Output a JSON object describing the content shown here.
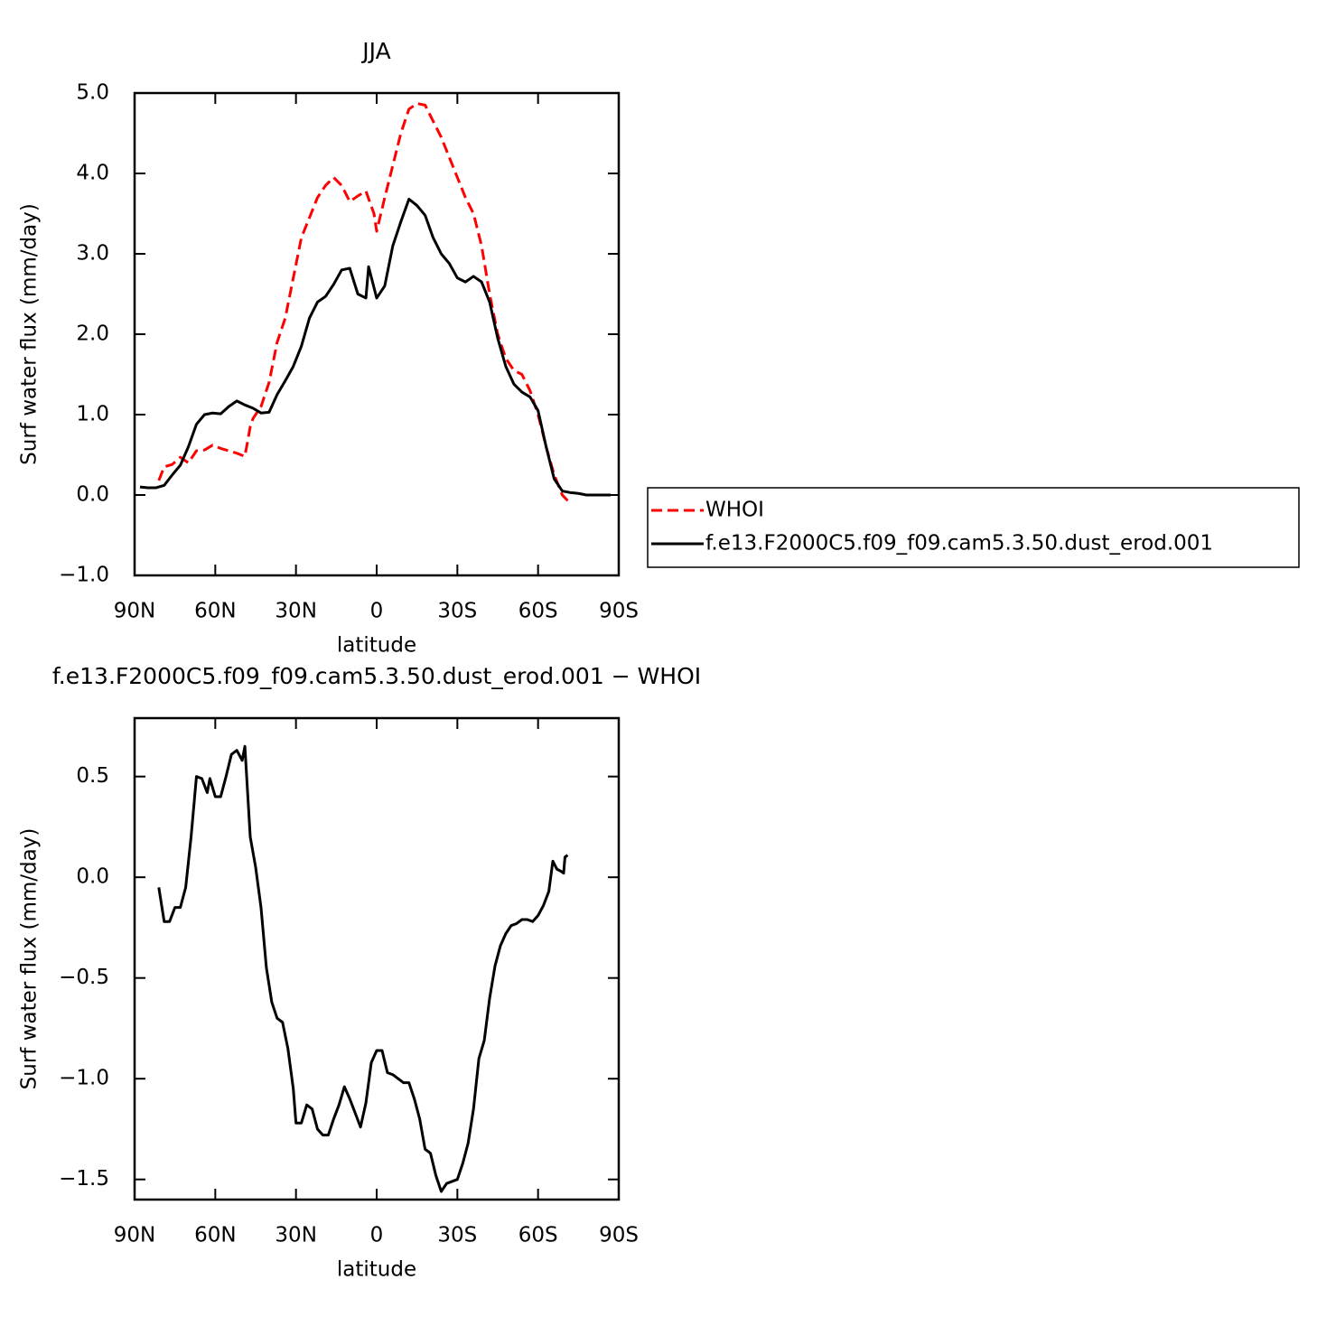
{
  "chart_data": [
    {
      "type": "line",
      "title": "JJA",
      "x_label": "latitude",
      "y_label": "Surf water flux (mm/day)",
      "xlim": [
        90,
        -90
      ],
      "xticks": [
        {
          "value": 90,
          "label": "90N"
        },
        {
          "value": 60,
          "label": "60N"
        },
        {
          "value": 30,
          "label": "30N"
        },
        0,
        {
          "value": -30,
          "label": "30S"
        },
        {
          "value": -60,
          "label": "60S"
        },
        {
          "value": -90,
          "label": "90S"
        }
      ],
      "ylim": [
        -1,
        5
      ],
      "yticks": [
        {
          "value": -1,
          "label": "−1.0"
        },
        {
          "value": 0,
          "label": "0.0"
        },
        {
          "value": 1,
          "label": "1.0"
        },
        {
          "value": 2,
          "label": "2.0"
        },
        {
          "value": 3,
          "label": "3.0"
        },
        {
          "value": 4,
          "label": "4.0"
        },
        {
          "value": 5,
          "label": "5.0"
        }
      ],
      "legend": "right",
      "series": [
        {
          "name": "WHOI",
          "color": "#ff0000",
          "dash": true,
          "x": [
            81,
            79,
            76,
            73,
            70,
            67,
            64,
            61,
            58,
            55,
            52,
            49,
            47,
            46,
            43,
            40,
            37,
            34,
            31,
            28,
            25,
            22,
            19,
            16,
            13,
            10,
            7,
            4,
            1,
            0,
            -3,
            -6,
            -9,
            -12,
            -15,
            -18,
            -21,
            -24,
            -27,
            -30,
            -33,
            -36,
            -39,
            -42,
            -45,
            -48,
            -51,
            -54,
            -57,
            -60,
            -63,
            -66,
            -69,
            -71
          ],
          "values": [
            0.18,
            0.35,
            0.38,
            0.47,
            0.4,
            0.55,
            0.56,
            0.62,
            0.58,
            0.55,
            0.52,
            0.48,
            0.85,
            0.95,
            1.1,
            1.4,
            1.9,
            2.2,
            2.7,
            3.2,
            3.45,
            3.7,
            3.85,
            3.95,
            3.85,
            3.65,
            3.72,
            3.78,
            3.5,
            3.28,
            3.7,
            4.1,
            4.5,
            4.8,
            4.87,
            4.85,
            4.65,
            4.45,
            4.2,
            3.95,
            3.7,
            3.5,
            3.1,
            2.5,
            2.0,
            1.7,
            1.55,
            1.5,
            1.3,
            1.0,
            0.6,
            0.25,
            0.0,
            -0.07
          ]
        },
        {
          "name": "f.e13.F2000C5.f09_f09.cam5.3.50.dust_erod.001",
          "color": "#000000",
          "dash": false,
          "x": [
            88,
            85,
            82,
            79,
            76,
            73,
            70,
            67,
            64,
            61,
            58,
            55,
            52,
            49,
            46,
            43,
            40,
            37,
            34,
            31,
            28,
            25,
            22,
            19,
            16,
            13,
            10,
            7,
            4,
            3,
            0,
            -3,
            -6,
            -9,
            -12,
            -15,
            -18,
            -21,
            -24,
            -27,
            -30,
            -33,
            -36,
            -39,
            -42,
            -45,
            -48,
            -51,
            -54,
            -57,
            -60,
            -63,
            -66,
            -69,
            -72,
            -75,
            -78,
            -81,
            -84,
            -87
          ],
          "values": [
            0.1,
            0.09,
            0.09,
            0.12,
            0.25,
            0.37,
            0.6,
            0.88,
            1.0,
            1.02,
            1.01,
            1.1,
            1.17,
            1.12,
            1.08,
            1.02,
            1.03,
            1.25,
            1.42,
            1.6,
            1.85,
            2.2,
            2.4,
            2.47,
            2.62,
            2.8,
            2.82,
            2.5,
            2.45,
            2.84,
            2.45,
            2.6,
            3.1,
            3.4,
            3.68,
            3.6,
            3.48,
            3.2,
            3.0,
            2.88,
            2.7,
            2.65,
            2.72,
            2.65,
            2.4,
            1.95,
            1.6,
            1.38,
            1.28,
            1.22,
            1.05,
            0.6,
            0.2,
            0.05,
            0.03,
            0.02,
            0.0,
            0.0,
            0.0,
            0.0
          ]
        }
      ]
    },
    {
      "type": "line",
      "title": "f.e13.F2000C5.f09_f09.cam5.3.50.dust_erod.001 − WHOI",
      "x_label": "latitude",
      "y_label": "Surf water flux (mm/day)",
      "xlim": [
        90,
        -90
      ],
      "xticks": [
        {
          "value": 90,
          "label": "90N"
        },
        {
          "value": 60,
          "label": "60N"
        },
        {
          "value": 30,
          "label": "30N"
        },
        0,
        {
          "value": -30,
          "label": "30S"
        },
        {
          "value": -60,
          "label": "60S"
        },
        {
          "value": -90,
          "label": "90S"
        }
      ],
      "ylim": [
        -1.6,
        0.79
      ],
      "yticks": [
        {
          "value": -1.5,
          "label": "−1.5"
        },
        {
          "value": -1,
          "label": "−1.0"
        },
        {
          "value": -0.5,
          "label": "−0.5"
        },
        {
          "value": 0,
          "label": "0.0"
        },
        0.5
      ],
      "color": "#000000",
      "x": [
        81,
        79,
        77,
        75,
        73,
        71,
        69,
        67,
        65,
        63,
        62,
        60,
        58,
        56,
        54,
        52,
        50,
        49,
        47,
        45,
        43,
        41,
        39,
        37,
        35,
        33,
        31,
        30,
        28,
        26,
        24,
        22,
        20,
        18,
        16,
        14,
        12,
        10,
        8,
        6,
        4,
        2,
        0,
        -2,
        -4,
        -6,
        -8,
        -10,
        -12,
        -14,
        -16,
        -18,
        -20,
        -22,
        -24,
        -26,
        -28,
        -30,
        -32,
        -34,
        -36,
        -38,
        -40,
        -42,
        -44,
        -46,
        -48,
        -50,
        -52,
        -54,
        -56,
        -58,
        -60,
        -62,
        -64,
        -65.5,
        -67,
        -68.5,
        -69.5,
        -70,
        -71
      ],
      "values": [
        -0.05,
        -0.22,
        -0.22,
        -0.15,
        -0.15,
        -0.05,
        0.2,
        0.5,
        0.49,
        0.42,
        0.49,
        0.4,
        0.4,
        0.5,
        0.61,
        0.63,
        0.58,
        0.65,
        0.2,
        0.05,
        -0.15,
        -0.45,
        -0.62,
        -0.7,
        -0.72,
        -0.85,
        -1.05,
        -1.22,
        -1.22,
        -1.13,
        -1.15,
        -1.25,
        -1.28,
        -1.28,
        -1.2,
        -1.13,
        -1.04,
        -1.1,
        -1.17,
        -1.24,
        -1.12,
        -0.92,
        -0.86,
        -0.86,
        -0.97,
        -0.98,
        -1.0,
        -1.02,
        -1.02,
        -1.1,
        -1.2,
        -1.35,
        -1.37,
        -1.48,
        -1.56,
        -1.52,
        -1.51,
        -1.5,
        -1.42,
        -1.32,
        -1.15,
        -0.9,
        -0.81,
        -0.6,
        -0.44,
        -0.34,
        -0.28,
        -0.24,
        -0.23,
        -0.21,
        -0.21,
        -0.22,
        -0.19,
        -0.14,
        -0.07,
        0.08,
        0.04,
        0.03,
        0.02,
        0.1,
        0.11
      ]
    }
  ]
}
